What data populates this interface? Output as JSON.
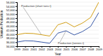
{
  "chart_data": {
    "type": "line",
    "x_label": "Year",
    "y_label": "Uranium Production",
    "x": [
      1999,
      2000,
      2001,
      2002,
      2003,
      2004,
      2005,
      2006,
      2007,
      2008,
      2009
    ],
    "xlim": [
      1999,
      2009
    ],
    "xticks": [
      1999,
      2000,
      2001,
      2002,
      2003,
      2004,
      2005,
      2006,
      2007,
      2008,
      2009
    ],
    "ylim": [
      34000,
      56000
    ],
    "yticks": [
      {
        "value": 34000,
        "label": "34,000"
      },
      {
        "value": 36000,
        "label": "36,000"
      },
      {
        "value": 38000,
        "label": "38,000"
      },
      {
        "value": 40000,
        "label": "40,000"
      },
      {
        "value": 42000,
        "label": "42,000"
      },
      {
        "value": 44000,
        "label": "44,000"
      },
      {
        "value": 46000,
        "label": "46,000"
      },
      {
        "value": 48000,
        "label": "48,000"
      },
      {
        "value": 50000,
        "label": "50,000"
      },
      {
        "value": 52000,
        "label": "52,000"
      },
      {
        "value": 54000,
        "label": "54,000"
      },
      {
        "value": 56000,
        "label": "56,000"
      }
    ],
    "grid": true,
    "series": [
      {
        "name": "Production (short tons t)",
        "color": "#d4a017",
        "values": [
          39725,
          40478,
          40335,
          39725,
          39060,
          44672,
          45930,
          43640,
          45503,
          48318,
          55952
        ]
      },
      {
        "name": "Production (tonnes t)",
        "color": "#3a5aa8",
        "values": [
          36050,
          36735,
          36600,
          36050,
          35450,
          40530,
          41680,
          39603,
          41279,
          43853,
          50772
        ]
      }
    ]
  }
}
